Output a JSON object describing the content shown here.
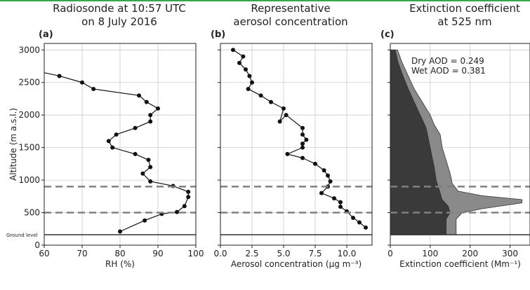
{
  "colors": {
    "accent": "#3aa64a",
    "grid": "#cccccc",
    "dashed": "#808080",
    "dry_fill": "#3a3a3a",
    "wet_fill": "#8a8a8a",
    "line": "#111111"
  },
  "chart_data": [
    {
      "type": "line",
      "panel": "(a)",
      "title": "Radiosonde at 10:57 UTC\non 8 July 2016",
      "xlabel": "RH (%)",
      "ylabel": "Altitude (m a.s.l.)",
      "xlim": [
        60,
        100
      ],
      "ylim": [
        0,
        3100
      ],
      "x_ticks": [
        60,
        70,
        80,
        90,
        100
      ],
      "y_ticks": [
        0,
        500,
        1000,
        1500,
        2000,
        2500,
        3000
      ],
      "ground_label": "Ground level",
      "ground_level": 160,
      "dashed_levels": [
        500,
        900
      ],
      "grid": true,
      "series": [
        {
          "points": [
            [
              80,
              210
            ],
            [
              86.5,
              380
            ],
            [
              91,
              480
            ],
            [
              95,
              510
            ],
            [
              97,
              600
            ],
            [
              98,
              740
            ],
            [
              98,
              820
            ],
            [
              94,
              910
            ],
            [
              88,
              980
            ],
            [
              86,
              1100
            ],
            [
              88,
              1200
            ],
            [
              87.5,
              1310
            ],
            [
              84,
              1400
            ],
            [
              78,
              1500
            ],
            [
              77,
              1600
            ],
            [
              79,
              1700
            ],
            [
              84,
              1800
            ],
            [
              88,
              1900
            ],
            [
              88,
              2000
            ],
            [
              90,
              2100
            ],
            [
              87,
              2200
            ],
            [
              85,
              2300
            ],
            [
              73,
              2400
            ],
            [
              70,
              2500
            ],
            [
              64,
              2600
            ],
            [
              60,
              2650
            ]
          ]
        }
      ]
    },
    {
      "type": "line",
      "panel": "(b)",
      "title": "Representative\naerosol concentration",
      "xlabel": "Aerosol concentration (μg m⁻³)",
      "xlim": [
        0,
        12
      ],
      "ylim": [
        0,
        3100
      ],
      "x_ticks": [
        0.0,
        2.5,
        5.0,
        7.5,
        10.0
      ],
      "x_tick_labels": [
        "0.0",
        "2.5",
        "5.0",
        "7.5",
        "10.0"
      ],
      "dashed_levels": [
        500,
        900
      ],
      "ground_level": 160,
      "grid": true,
      "series": [
        {
          "points": [
            [
              11.5,
              270
            ],
            [
              11.0,
              350
            ],
            [
              10.5,
              420
            ],
            [
              10.0,
              520
            ],
            [
              9.5,
              590
            ],
            [
              9.5,
              660
            ],
            [
              9.0,
              720
            ],
            [
              8.0,
              800
            ],
            [
              8.5,
              900
            ],
            [
              8.7,
              980
            ],
            [
              8.5,
              1070
            ],
            [
              8.2,
              1150
            ],
            [
              7.5,
              1250
            ],
            [
              6.5,
              1340
            ],
            [
              5.3,
              1400
            ],
            [
              6.5,
              1500
            ],
            [
              6.5,
              1560
            ],
            [
              6.8,
              1620
            ],
            [
              6.5,
              1700
            ],
            [
              6.5,
              1800
            ],
            [
              5.2,
              2000
            ],
            [
              4.7,
              1900
            ],
            [
              5.0,
              2100
            ],
            [
              4.0,
              2200
            ],
            [
              3.2,
              2300
            ],
            [
              2.2,
              2400
            ],
            [
              2.5,
              2500
            ],
            [
              2.3,
              2600
            ],
            [
              2.0,
              2700
            ],
            [
              1.5,
              2800
            ],
            [
              1.8,
              2900
            ],
            [
              1.0,
              3000
            ]
          ]
        }
      ]
    },
    {
      "type": "area",
      "panel": "(c)",
      "title": "Extinction coefficient\nat 525 nm",
      "xlabel": "Extinction coefficient (Mm⁻¹)",
      "xlim": [
        0,
        350
      ],
      "ylim": [
        0,
        3100
      ],
      "x_ticks": [
        0,
        100,
        200,
        300
      ],
      "dashed_levels": [
        500,
        900
      ],
      "ground_level": 160,
      "grid": true,
      "annotations": [
        "Dry AOD = 0.249",
        "Wet AOD = 0.381"
      ],
      "series": [
        {
          "name": "Wet",
          "points": [
            [
              165,
              160
            ],
            [
              165,
              400
            ],
            [
              180,
              500
            ],
            [
              230,
              560
            ],
            [
              330,
              650
            ],
            [
              330,
              700
            ],
            [
              230,
              760
            ],
            [
              170,
              830
            ],
            [
              155,
              950
            ],
            [
              150,
              1100
            ],
            [
              140,
              1300
            ],
            [
              130,
              1500
            ],
            [
              125,
              1700
            ],
            [
              110,
              1850
            ],
            [
              100,
              2000
            ],
            [
              80,
              2200
            ],
            [
              60,
              2400
            ],
            [
              45,
              2600
            ],
            [
              30,
              2800
            ],
            [
              18,
              3000
            ]
          ]
        },
        {
          "name": "Dry",
          "points": [
            [
              140,
              160
            ],
            [
              140,
              400
            ],
            [
              150,
              500
            ],
            [
              145,
              600
            ],
            [
              130,
              700
            ],
            [
              125,
              800
            ],
            [
              115,
              1000
            ],
            [
              110,
              1200
            ],
            [
              100,
              1500
            ],
            [
              90,
              1800
            ],
            [
              75,
              2000
            ],
            [
              60,
              2200
            ],
            [
              45,
              2400
            ],
            [
              32,
              2600
            ],
            [
              20,
              2800
            ],
            [
              12,
              3000
            ]
          ]
        }
      ]
    }
  ]
}
